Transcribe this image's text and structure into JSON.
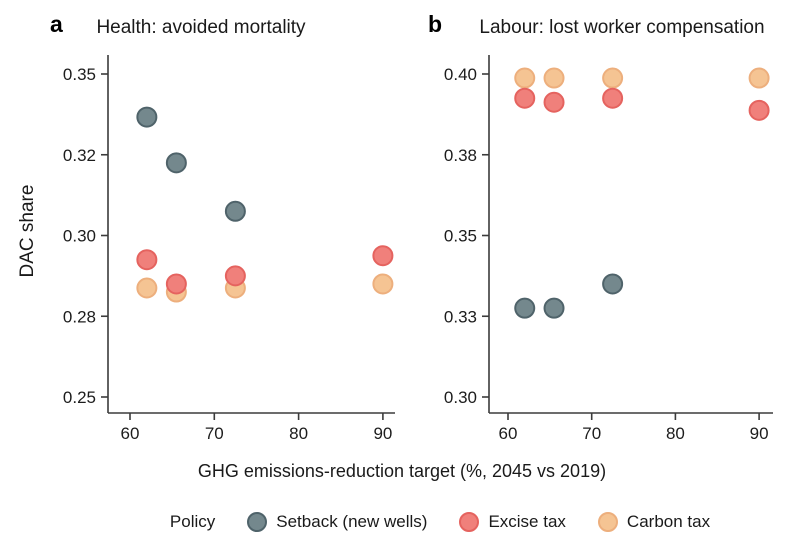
{
  "figure_title": "",
  "ylabel": "DAC share",
  "xlabel": "GHG emissions-reduction target (%, 2045 vs 2019)",
  "legend": {
    "title": "Policy",
    "items": [
      {
        "label": "Setback (new wells)"
      },
      {
        "label": "Excise tax"
      },
      {
        "label": "Carbon tax"
      }
    ]
  },
  "chart_data": [
    {
      "type": "scatter",
      "panel_label": "a",
      "title": "Health: avoided mortality",
      "xlabel": "GHG emissions-reduction target (%, 2045 vs 2019)",
      "ylabel": "DAC share",
      "x_tick_values": [
        60,
        70,
        80,
        90
      ],
      "x_tick_labels": [
        "60",
        "70",
        "80",
        "90"
      ],
      "x_range": [
        57.4,
        91.5
      ],
      "y_tick_values": [
        0.25,
        0.28,
        0.3,
        0.32,
        0.35
      ],
      "y_tick_labels": [
        "0.25",
        "0.28",
        "0.30",
        "0.32",
        "0.35"
      ],
      "y_ticks_evenly_spaced": true,
      "grid": false,
      "series": [
        {
          "name": "Setback (new wells)",
          "fill": "#74888D",
          "stroke": "#4F636A",
          "points": [
            [
              62,
              0.334
            ],
            [
              65.5,
              0.318
            ],
            [
              72.5,
              0.306
            ]
          ]
        },
        {
          "name": "Excise tax",
          "fill": "#F0807B",
          "stroke": "#E5635F",
          "points": [
            [
              62,
              0.294
            ],
            [
              65.5,
              0.288
            ],
            [
              72.5,
              0.29
            ],
            [
              90,
              0.295
            ]
          ]
        },
        {
          "name": "Carbon tax",
          "fill": "#F5C493",
          "stroke": "#EDAF7D",
          "points": [
            [
              62,
              0.287
            ],
            [
              65.5,
              0.286
            ],
            [
              72.5,
              0.287
            ],
            [
              90,
              0.288
            ]
          ]
        }
      ]
    },
    {
      "type": "scatter",
      "panel_label": "b",
      "title": "Labour: lost worker compensation",
      "xlabel": "GHG emissions-reduction target (%, 2045 vs 2019)",
      "ylabel": "DAC share",
      "x_tick_values": [
        60,
        70,
        80,
        90
      ],
      "x_tick_labels": [
        "60",
        "70",
        "80",
        "90"
      ],
      "x_range": [
        57.7,
        91.7
      ],
      "y_tick_values": [
        0.3,
        0.33,
        0.35,
        0.38,
        0.4
      ],
      "y_tick_labels": [
        "0.30",
        "0.33",
        "0.35",
        "0.38",
        "0.40"
      ],
      "y_ticks_evenly_spaced": true,
      "grid": false,
      "series": [
        {
          "name": "Setback (new wells)",
          "fill": "#74888D",
          "stroke": "#4F636A",
          "points": [
            [
              62,
              0.332
            ],
            [
              65.5,
              0.332
            ],
            [
              72.5,
              0.338
            ]
          ]
        },
        {
          "name": "Excise tax",
          "fill": "#F0807B",
          "stroke": "#E5635F",
          "points": [
            [
              62,
              0.394
            ],
            [
              65.5,
              0.393
            ],
            [
              72.5,
              0.394
            ],
            [
              90,
              0.391
            ]
          ]
        },
        {
          "name": "Carbon tax",
          "fill": "#F5C493",
          "stroke": "#EDAF7D",
          "points": [
            [
              62,
              0.399
            ],
            [
              65.5,
              0.399
            ],
            [
              72.5,
              0.399
            ],
            [
              90,
              0.399
            ]
          ]
        }
      ]
    }
  ]
}
